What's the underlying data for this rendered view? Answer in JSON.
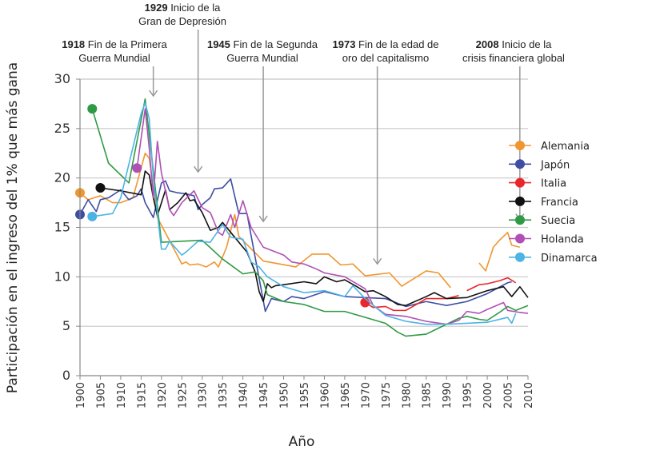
{
  "chart_data": {
    "type": "line",
    "xlabel": "Año",
    "ylabel": "Participación en el ingreso del 1% que más gana",
    "xlim": [
      1900,
      2010
    ],
    "ylim": [
      0,
      30
    ],
    "xticks": [
      1900,
      1905,
      1910,
      1915,
      1920,
      1925,
      1930,
      1935,
      1940,
      1945,
      1950,
      1955,
      1960,
      1965,
      1970,
      1975,
      1980,
      1985,
      1990,
      1995,
      2000,
      2005,
      2010
    ],
    "yticks": [
      0,
      5,
      10,
      15,
      20,
      25,
      30
    ],
    "grid": "horizontal",
    "legend_position": "right",
    "annotations": [
      {
        "year": 1918,
        "bold": "1918",
        "line1": " Fin de la Primera",
        "line2": "Guerra Mundial",
        "tip": 28.3
      },
      {
        "year": 1929,
        "bold": "1929",
        "line1": " Inicio de la",
        "line2": "Gran de Depresión",
        "tip": 20.6
      },
      {
        "year": 1945,
        "bold": "1945",
        "line1": " Fin de la Segunda",
        "line2": "Guerra Mundial",
        "tip": 15.6
      },
      {
        "year": 1973,
        "bold": "1973",
        "line1": " Fin de la edad de",
        "line2": "oro del capitalismo",
        "tip": 11.3
      },
      {
        "year": 2008,
        "bold": "2008",
        "line1": " Inicio de la",
        "line2": "crisis financiera global",
        "tip": 15.8
      }
    ],
    "series": [
      {
        "name": "Alemania",
        "color": "#f0962e",
        "segments": [
          [
            [
              1900,
              18.5
            ],
            [
              1902,
              17.8
            ],
            [
              1905,
              18.2
            ],
            [
              1908,
              17.5
            ],
            [
              1910,
              17.5
            ],
            [
              1913,
              18
            ],
            [
              1915,
              21
            ],
            [
              1916,
              22.5
            ],
            [
              1917,
              22
            ],
            [
              1919,
              16
            ],
            [
              1925,
              11.3
            ],
            [
              1926,
              11.5
            ],
            [
              1927,
              11.2
            ],
            [
              1929,
              11.3
            ],
            [
              1931,
              11
            ],
            [
              1933,
              11.5
            ],
            [
              1934,
              11
            ],
            [
              1936,
              13
            ],
            [
              1938,
              16.3
            ],
            [
              1939,
              14.1
            ],
            [
              1945,
              11.6
            ],
            [
              1953,
              11
            ],
            [
              1957,
              12.3
            ],
            [
              1961,
              12.3
            ],
            [
              1964,
              11.2
            ],
            [
              1967,
              11.3
            ],
            [
              1970,
              10.1
            ],
            [
              1976,
              10.4
            ],
            [
              1979,
              9.05
            ],
            [
              1985,
              10.6
            ],
            [
              1988,
              10.4
            ],
            [
              1991,
              8.9
            ]
          ],
          [
            [
              1998,
              11.4
            ],
            [
              1999.6,
              10.6
            ],
            [
              2001.5,
              13
            ],
            [
              2003,
              13.7
            ],
            [
              2005,
              14.5
            ],
            [
              2006,
              13.2
            ],
            [
              2008,
              13.0
            ]
          ]
        ]
      },
      {
        "name": "Japón",
        "color": "#3d4ea3",
        "segments": [
          [
            [
              1900,
              16.3
            ],
            [
              1902,
              17.8
            ],
            [
              1904,
              16.6
            ],
            [
              1905,
              17.8
            ],
            [
              1907,
              18
            ],
            [
              1910,
              18.8
            ],
            [
              1912,
              17.8
            ],
            [
              1914,
              18.2
            ],
            [
              1915,
              18.9
            ],
            [
              1916,
              17.5
            ],
            [
              1918,
              16
            ],
            [
              1920,
              19.5
            ],
            [
              1921,
              19.7
            ],
            [
              1922,
              18.7
            ],
            [
              1924,
              18.5
            ],
            [
              1926,
              18.4
            ],
            [
              1928,
              18.2
            ],
            [
              1929,
              16.8
            ],
            [
              1930,
              17.3
            ],
            [
              1932,
              18
            ],
            [
              1933,
              18.9
            ],
            [
              1935,
              19
            ],
            [
              1937,
              19.9
            ],
            [
              1939,
              16.4
            ],
            [
              1941,
              16.4
            ],
            [
              1943,
              12
            ],
            [
              1945.5,
              6.5
            ],
            [
              1947,
              7.8
            ],
            [
              1950,
              7.5
            ],
            [
              1952,
              8
            ],
            [
              1955,
              7.8
            ],
            [
              1960,
              8.5
            ],
            [
              1965,
              8
            ],
            [
              1970,
              7.9
            ],
            [
              1975,
              7.8
            ],
            [
              1980,
              7
            ],
            [
              1985,
              7.5
            ],
            [
              1990,
              7.1
            ],
            [
              1995,
              7.5
            ],
            [
              2000,
              8.3
            ],
            [
              2005,
              9.4
            ],
            [
              2006,
              9.5
            ]
          ]
        ]
      },
      {
        "name": "Italia",
        "color": "#e8262b",
        "segments": [
          [
            [
              1970,
              7.4
            ],
            [
              1972,
              6.9
            ],
            [
              1975,
              7.0
            ],
            [
              1977,
              6.6
            ],
            [
              1980,
              6.6
            ],
            [
              1983,
              7.3
            ],
            [
              1985,
              7.8
            ],
            [
              1990,
              7.8
            ],
            [
              1993,
              8.1
            ]
          ],
          [
            [
              1995,
              8.6
            ],
            [
              1998,
              9.2
            ],
            [
              2000,
              9.3
            ],
            [
              2003,
              9.6
            ],
            [
              2005,
              9.9
            ],
            [
              2007,
              9.4
            ]
          ]
        ]
      },
      {
        "name": "Francia",
        "color": "#111111",
        "segments": [
          [
            [
              1905,
              19
            ],
            [
              1910,
              18.7
            ],
            [
              1915,
              18.3
            ],
            [
              1916,
              20.7
            ],
            [
              1917,
              20.3
            ],
            [
              1918,
              18
            ],
            [
              1919,
              16.2
            ],
            [
              1920,
              17.5
            ],
            [
              1921,
              18.8
            ],
            [
              1922,
              16.8
            ],
            [
              1924,
              17.5
            ],
            [
              1926,
              18.5
            ],
            [
              1927,
              17.7
            ],
            [
              1928,
              17.8
            ],
            [
              1930,
              16.5
            ],
            [
              1932,
              14.7
            ],
            [
              1934,
              15
            ],
            [
              1935,
              15.5
            ],
            [
              1937,
              14.5
            ],
            [
              1940,
              13
            ],
            [
              1941,
              12.5
            ],
            [
              1943,
              10.5
            ],
            [
              1944,
              8.5
            ],
            [
              1945,
              7.5
            ],
            [
              1946,
              9.3
            ],
            [
              1947,
              8.9
            ],
            [
              1948,
              9.1
            ],
            [
              1950,
              9.2
            ],
            [
              1955,
              9.5
            ],
            [
              1958,
              9.3
            ],
            [
              1960,
              10
            ],
            [
              1963,
              9.5
            ],
            [
              1965,
              9.7
            ],
            [
              1968,
              9
            ],
            [
              1970,
              8.5
            ],
            [
              1972,
              8.6
            ],
            [
              1975,
              8.0
            ],
            [
              1978,
              7.2
            ],
            [
              1980,
              7.1
            ],
            [
              1985,
              8
            ],
            [
              1987,
              8.4
            ],
            [
              1990,
              7.8
            ],
            [
              1995,
              7.9
            ],
            [
              2000,
              8.6
            ],
            [
              2004,
              9.0
            ],
            [
              2006,
              8.0
            ],
            [
              2008,
              9.0
            ],
            [
              2010,
              7.9
            ]
          ]
        ]
      },
      {
        "name": "Suecia",
        "color": "#2f9a45",
        "segments": [
          [
            [
              1903,
              27
            ],
            [
              1907,
              21.5
            ],
            [
              1912,
              19.5
            ],
            [
              1916,
              28
            ],
            [
              1920,
              13.5
            ],
            [
              1930,
              13.7
            ],
            [
              1935,
              11.8
            ],
            [
              1940,
              10.3
            ],
            [
              1943,
              10.5
            ],
            [
              1945,
              9.6
            ],
            [
              1946,
              8.2
            ],
            [
              1950,
              7.5
            ],
            [
              1955,
              7.2
            ],
            [
              1960,
              6.5
            ],
            [
              1965,
              6.5
            ],
            [
              1970,
              5.9
            ],
            [
              1975,
              5.3
            ],
            [
              1978,
              4.4
            ],
            [
              1980,
              4
            ],
            [
              1985,
              4.2
            ],
            [
              1988,
              4.8
            ],
            [
              1990,
              5.2
            ],
            [
              1993,
              5.8
            ],
            [
              1995,
              6.0
            ],
            [
              1998,
              5.7
            ],
            [
              2000,
              5.6
            ],
            [
              2003,
              6.4
            ],
            [
              2005,
              7
            ],
            [
              2007,
              6.6
            ],
            [
              2010,
              7.1
            ]
          ]
        ]
      },
      {
        "name": "Holanda",
        "color": "#b04fb5",
        "segments": [
          [
            [
              1914,
              21
            ],
            [
              1916,
              27
            ],
            [
              1917,
              23
            ],
            [
              1918,
              18
            ],
            [
              1919,
              23.7
            ],
            [
              1920,
              20.5
            ],
            [
              1922,
              16.8
            ],
            [
              1923,
              16.2
            ],
            [
              1925,
              17.5
            ],
            [
              1928,
              18.7
            ],
            [
              1930,
              17
            ],
            [
              1932,
              16.5
            ],
            [
              1934,
              14.5
            ],
            [
              1935,
              14.2
            ],
            [
              1937,
              16.3
            ],
            [
              1938,
              15
            ],
            [
              1940,
              17.7
            ],
            [
              1942,
              15
            ],
            [
              1945,
              13
            ],
            [
              1950,
              12.2
            ],
            [
              1952,
              11.5
            ],
            [
              1955,
              11.3
            ],
            [
              1958,
              10.8
            ],
            [
              1960,
              10.4
            ],
            [
              1965,
              10
            ],
            [
              1970,
              8.8
            ],
            [
              1972,
              7.1
            ],
            [
              1975,
              6.2
            ],
            [
              1980,
              6.0
            ],
            [
              1985,
              5.5
            ],
            [
              1990,
              5.2
            ],
            [
              1993,
              5.6
            ],
            [
              1995,
              6.5
            ],
            [
              1998,
              6.3
            ],
            [
              2000,
              6.7
            ],
            [
              2004,
              7.4
            ],
            [
              2005,
              6.6
            ],
            [
              2008,
              6.4
            ],
            [
              2010,
              6.3
            ]
          ]
        ]
      },
      {
        "name": "Dinamarca",
        "color": "#4cb3e4",
        "segments": [
          [
            [
              1903,
              16.1
            ],
            [
              1908,
              16.4
            ],
            [
              1910,
              18
            ],
            [
              1915,
              26.5
            ],
            [
              1916,
              27.6
            ],
            [
              1917,
              26
            ],
            [
              1918,
              20
            ],
            [
              1920,
              12.8
            ],
            [
              1921,
              12.8
            ],
            [
              1922,
              13.6
            ],
            [
              1925,
              12.2
            ],
            [
              1926,
              12.5
            ],
            [
              1929,
              13.6
            ],
            [
              1932,
              13.5
            ],
            [
              1935,
              15.3
            ],
            [
              1937,
              14
            ],
            [
              1940,
              13.8
            ],
            [
              1942,
              11.5
            ],
            [
              1944,
              11
            ],
            [
              1946,
              10
            ],
            [
              1950,
              9
            ],
            [
              1955,
              8.4
            ],
            [
              1960,
              8.6
            ],
            [
              1965,
              8.0
            ],
            [
              1967,
              9.1
            ],
            [
              1970,
              7.8
            ],
            [
              1975,
              6.1
            ],
            [
              1980,
              5.5
            ],
            [
              1985,
              5.2
            ],
            [
              1990,
              5.2
            ],
            [
              1995,
              5.3
            ],
            [
              2000,
              5.4
            ],
            [
              2005,
              5.9
            ],
            [
              2006,
              5.3
            ],
            [
              2007,
              6.3
            ]
          ]
        ]
      }
    ]
  }
}
